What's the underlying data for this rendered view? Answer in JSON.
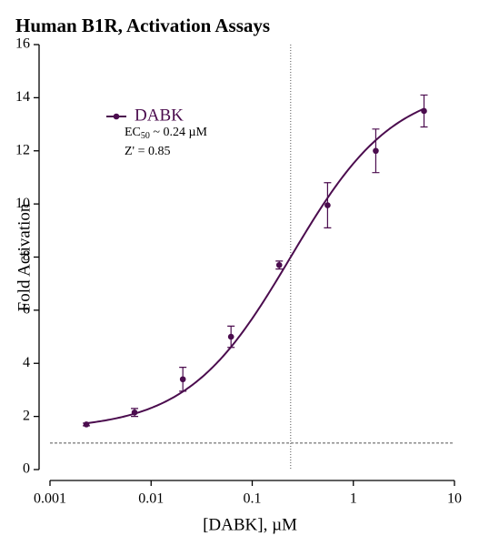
{
  "chart_data": {
    "type": "dose-response",
    "title": "Human B1R, Activation Assays",
    "x_label": "[DABK], µM",
    "y_label": "Fold Activation",
    "x_scale": "log",
    "xlim": [
      0.001,
      10
    ],
    "xticks": [
      0.001,
      0.01,
      0.1,
      1,
      10
    ],
    "ylim": [
      0,
      16
    ],
    "yticks": [
      0,
      2,
      4,
      6,
      8,
      10,
      12,
      14,
      16
    ],
    "series": [
      {
        "name": "DABK",
        "color": "#4b0c4e",
        "x": [
          0.00229,
          0.00686,
          0.0206,
          0.0617,
          0.185,
          0.556,
          1.667,
          5
        ],
        "values": [
          1.7,
          2.15,
          3.4,
          5.0,
          7.7,
          9.95,
          12.0,
          13.5
        ],
        "errors": [
          0.05,
          0.15,
          0.45,
          0.4,
          0.15,
          0.85,
          0.82,
          0.6
        ]
      }
    ],
    "fit": {
      "bottom": 1.5,
      "top": 14.5,
      "ec50": 0.24,
      "hill": 0.85
    },
    "baseline": 1,
    "annotations": {
      "ec50_prefix": "EC",
      "ec50_sub": "50",
      "ec50_suffix": " ~ 0.24 µM",
      "z_prime": "Z' = 0.85"
    }
  }
}
